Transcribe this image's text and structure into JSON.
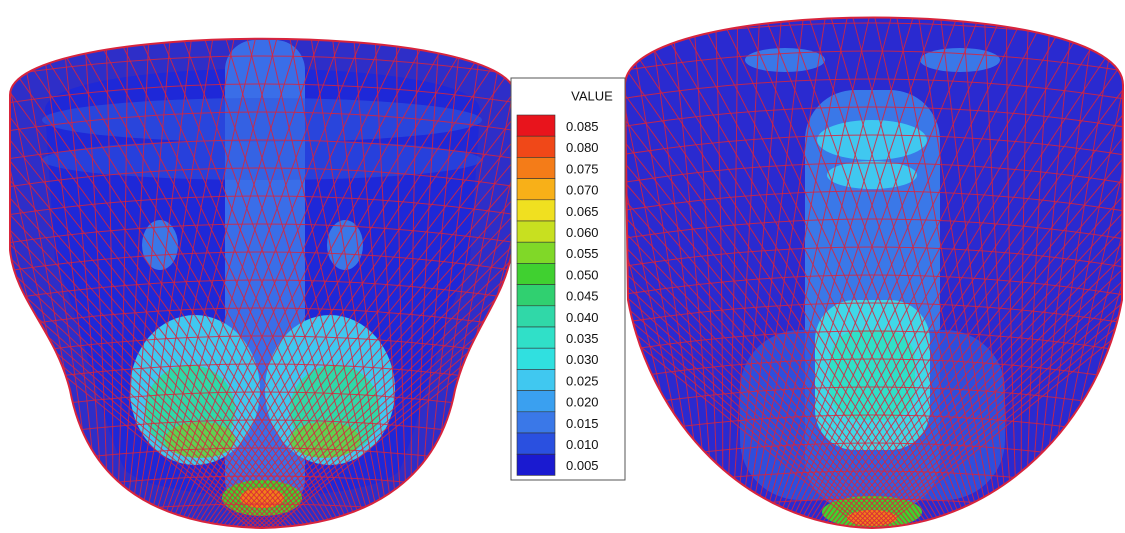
{
  "chart_data": {
    "type": "contour",
    "legend": {
      "title": "VALUE",
      "levels": [
        0.085,
        {
          "value": 0.08,
          "label": "0.080"
        },
        0.075,
        {
          "value": 0.07,
          "label": "0.070"
        },
        0.065,
        {
          "value": 0.06,
          "label": "0.060"
        },
        0.055,
        {
          "value": 0.05,
          "label": "0.050"
        },
        0.045,
        {
          "value": 0.04,
          "label": "0.040"
        },
        0.035,
        {
          "value": 0.03,
          "label": "0.030"
        },
        0.025,
        {
          "value": 0.02,
          "label": "0.020"
        },
        0.015,
        {
          "value": 0.01,
          "label": "0.010"
        },
        0.005
      ],
      "colors": [
        "#e8141c",
        "#f04818",
        "#f47c18",
        "#f8b018",
        "#f0e020",
        "#c8e020",
        "#80d828",
        "#40d030",
        "#30d070",
        "#30d8a8",
        "#30e0c8",
        "#30e0e0",
        "#40c8f0",
        "#3aa0f0",
        "#3a78e8",
        "#2a50e0",
        "#1a1ad0"
      ]
    }
  }
}
